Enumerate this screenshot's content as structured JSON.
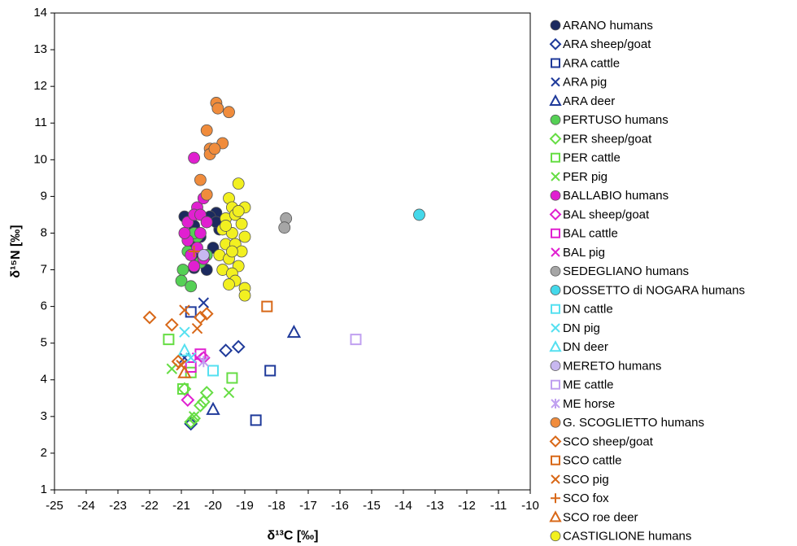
{
  "chart_data": {
    "type": "scatter",
    "x_label": "δ¹³C [‰]",
    "y_label": "δ¹⁵N [‰]",
    "xlim": [
      -25,
      -10
    ],
    "xticks": [
      -25,
      -24,
      -23,
      -22,
      -21,
      -20,
      -19,
      -18,
      -17,
      -16,
      -15,
      -14,
      -13,
      -12,
      -11,
      -10
    ],
    "ylim": [
      1,
      14
    ],
    "yticks": [
      1,
      2,
      3,
      4,
      5,
      6,
      7,
      8,
      9,
      10,
      11,
      12,
      13,
      14
    ],
    "series": [
      {
        "name": "ARANO humans",
        "color": "#1c2a5e",
        "marker": "circle",
        "x": [
          -20.9,
          -20.6,
          -20.4,
          -20.2,
          -19.9,
          -19.8,
          -20.0,
          -20.5,
          -20.2,
          -20.6,
          -20.1,
          -20.7,
          -19.9
        ],
        "y": [
          8.45,
          8.2,
          7.9,
          8.3,
          8.55,
          8.1,
          7.6,
          7.3,
          7.0,
          7.05,
          8.45,
          7.7,
          8.3
        ]
      },
      {
        "name": "ARA sheep/goat",
        "color": "#1f3a9a",
        "marker": "diamond",
        "x": [
          -20.7,
          -19.6,
          -19.2
        ],
        "y": [
          2.8,
          4.8,
          4.9
        ]
      },
      {
        "name": "ARA cattle",
        "color": "#1f3a9a",
        "marker": "square",
        "x": [
          -20.7,
          -18.2,
          -18.65
        ],
        "y": [
          5.85,
          4.25,
          2.9
        ]
      },
      {
        "name": "ARA pig",
        "color": "#1f3a9a",
        "marker": "x",
        "x": [
          -20.3,
          -20.9
        ],
        "y": [
          6.1,
          4.6
        ]
      },
      {
        "name": "ARA deer",
        "color": "#1f3a9a",
        "marker": "triangle",
        "x": [
          -17.45,
          -20.0
        ],
        "y": [
          5.3,
          3.2
        ]
      },
      {
        "name": "PERTUSO humans",
        "color": "#55d055",
        "marker": "circle",
        "x": [
          -20.95,
          -21.0,
          -20.7,
          -20.8,
          -20.5,
          -20.2,
          -20.4,
          -20.6
        ],
        "y": [
          7.0,
          6.7,
          6.55,
          7.5,
          7.9,
          7.4,
          7.2,
          8.0
        ]
      },
      {
        "name": "PER sheep/goat",
        "color": "#66dd44",
        "marker": "diamond",
        "x": [
          -20.9,
          -20.2,
          -20.4,
          -20.6,
          -20.7,
          -20.3
        ],
        "y": [
          3.75,
          3.65,
          3.3,
          2.95,
          2.85,
          3.4
        ]
      },
      {
        "name": "PER cattle",
        "color": "#66dd44",
        "marker": "square",
        "x": [
          -21.4,
          -20.95,
          -19.4,
          -20.7
        ],
        "y": [
          5.1,
          3.75,
          4.05,
          4.2
        ]
      },
      {
        "name": "PER pig",
        "color": "#66dd44",
        "marker": "x",
        "x": [
          -21.3,
          -19.5,
          -20.6
        ],
        "y": [
          4.3,
          3.65,
          3.0
        ]
      },
      {
        "name": "BALLABIO humans",
        "color": "#e020d0",
        "marker": "circle",
        "x": [
          -20.6,
          -20.5,
          -20.3,
          -20.8,
          -20.6,
          -20.4,
          -20.8,
          -20.5,
          -20.7,
          -20.3,
          -20.6,
          -20.4,
          -20.2,
          -20.9
        ],
        "y": [
          10.05,
          8.7,
          8.95,
          8.3,
          8.5,
          8.0,
          7.8,
          7.6,
          7.4,
          7.3,
          7.1,
          8.5,
          8.3,
          8.0
        ]
      },
      {
        "name": "BAL sheep/goat",
        "color": "#e020d0",
        "marker": "diamond",
        "x": [
          -20.8,
          -20.3
        ],
        "y": [
          3.45,
          4.6
        ]
      },
      {
        "name": "BAL cattle",
        "color": "#e020d0",
        "marker": "square",
        "x": [
          -20.4,
          -20.7
        ],
        "y": [
          4.7,
          4.35
        ]
      },
      {
        "name": "BAL pig",
        "color": "#e020d0",
        "marker": "x",
        "x": [
          -20.5
        ],
        "y": [
          4.6
        ]
      },
      {
        "name": "SEDEGLIANO humans",
        "color": "#a6a6a6",
        "marker": "circle",
        "x": [
          -17.7,
          -17.75
        ],
        "y": [
          8.4,
          8.15
        ]
      },
      {
        "name": "DOSSETTO di NOGARA humans",
        "color": "#44d8ea",
        "marker": "circle",
        "x": [
          -13.5
        ],
        "y": [
          8.5
        ]
      },
      {
        "name": "DN cattle",
        "color": "#55e0f0",
        "marker": "square",
        "x": [
          -20.0
        ],
        "y": [
          4.25
        ]
      },
      {
        "name": "DN pig",
        "color": "#55e0f0",
        "marker": "x",
        "x": [
          -20.9,
          -20.7
        ],
        "y": [
          5.3,
          4.6
        ]
      },
      {
        "name": "DN deer",
        "color": "#55e0f0",
        "marker": "triangle",
        "x": [
          -20.9
        ],
        "y": [
          4.8
        ]
      },
      {
        "name": "MERETO humans",
        "color": "#c8b8f0",
        "marker": "circle",
        "x": [
          -20.3
        ],
        "y": [
          7.4
        ]
      },
      {
        "name": "ME cattle",
        "color": "#c0a0f0",
        "marker": "square",
        "x": [
          -15.5
        ],
        "y": [
          5.1
        ]
      },
      {
        "name": "ME horse",
        "color": "#c0a0f0",
        "marker": "star",
        "x": [
          -20.3
        ],
        "y": [
          4.5
        ]
      },
      {
        "name": "G. SCOGLIETTO humans",
        "color": "#f08c3c",
        "marker": "circle",
        "x": [
          -19.9,
          -19.85,
          -19.5,
          -20.2,
          -19.7,
          -20.1,
          -20.1,
          -20.4,
          -20.2,
          -19.95
        ],
        "y": [
          11.55,
          11.4,
          11.3,
          10.8,
          10.45,
          10.3,
          10.15,
          9.45,
          9.05,
          10.3
        ]
      },
      {
        "name": "SCO sheep/goat",
        "color": "#d86818",
        "marker": "diamond",
        "x": [
          -22.0,
          -21.3,
          -20.2,
          -21.1,
          -20.4
        ],
        "y": [
          5.7,
          5.5,
          5.8,
          4.5,
          5.7
        ]
      },
      {
        "name": "SCO cattle",
        "color": "#d86818",
        "marker": "square",
        "x": [
          -18.3
        ],
        "y": [
          6.0
        ]
      },
      {
        "name": "SCO pig",
        "color": "#d86818",
        "marker": "x",
        "x": [
          -20.9,
          -20.5,
          -21.0
        ],
        "y": [
          5.9,
          5.4,
          4.4
        ]
      },
      {
        "name": "SCO fox",
        "color": "#d86818",
        "marker": "plus",
        "x": [
          -20.6
        ],
        "y": [
          7.5
        ]
      },
      {
        "name": "SCO roe deer",
        "color": "#d86818",
        "marker": "triangle",
        "x": [
          -20.9
        ],
        "y": [
          4.2
        ]
      },
      {
        "name": "CASTIGLIONE humans",
        "color": "#f2f020",
        "marker": "circle",
        "x": [
          -19.2,
          -19.5,
          -19.4,
          -19.0,
          -19.6,
          -19.3,
          -19.1,
          -19.7,
          -19.4,
          -19.0,
          -19.6,
          -19.3,
          -19.8,
          -19.1,
          -19.5,
          -19.2,
          -19.7,
          -19.4,
          -19.3,
          -19.0,
          -19.0,
          -19.5,
          -19.2,
          -19.6,
          -19.4
        ],
        "y": [
          9.35,
          8.95,
          8.7,
          8.7,
          8.4,
          8.5,
          8.25,
          8.1,
          8.0,
          7.9,
          7.7,
          7.7,
          7.4,
          7.5,
          7.3,
          7.1,
          7.0,
          6.9,
          6.7,
          6.5,
          6.3,
          6.6,
          8.6,
          8.2,
          7.5
        ]
      }
    ]
  }
}
